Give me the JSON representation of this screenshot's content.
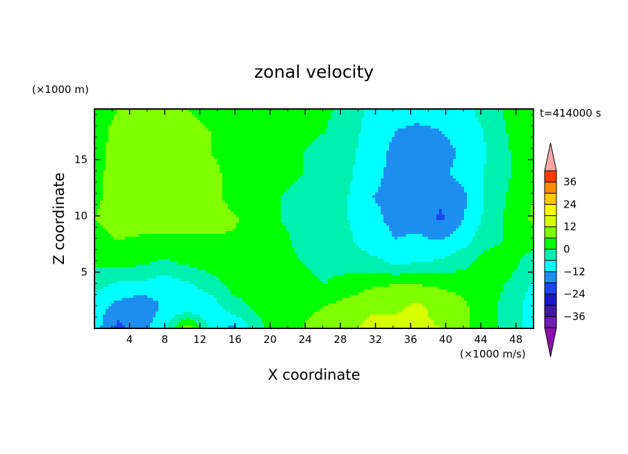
{
  "chart_data": {
    "type": "heatmap",
    "title": "zonal velocity",
    "xlabel": "X coordinate",
    "ylabel": "Z coordinate",
    "x_unit": "(×1000 m/s)",
    "y_unit": "(×1000 m)",
    "time_label": "t=414000 s",
    "xlim": [
      0,
      50
    ],
    "ylim": [
      0,
      19.5
    ],
    "x_ticks": [
      4,
      8,
      12,
      16,
      20,
      24,
      28,
      32,
      36,
      40,
      44,
      48
    ],
    "y_ticks": [
      5,
      10,
      15
    ],
    "colorbar": {
      "levels": [
        -42,
        -36,
        -30,
        -24,
        -18,
        -12,
        -6,
        0,
        6,
        12,
        18,
        24,
        30,
        36,
        42
      ],
      "tick_labels": [
        36,
        24,
        12,
        0,
        -12,
        -24,
        -36
      ],
      "colors": [
        "#6f1cb0",
        "#3e1aa3",
        "#1818c8",
        "#1a45ee",
        "#1d8ef0",
        "#00ffff",
        "#00f0b0",
        "#00ff00",
        "#80ff00",
        "#d6ff00",
        "#ffff00",
        "#ffc800",
        "#ff8c00",
        "#ff3c00",
        "#ff1a1a"
      ],
      "extend_low_color": "#8b12a8",
      "extend_high_color": "#f7a6a6"
    },
    "z_grid": [
      [
        2,
        6,
        10,
        8,
        6,
        5,
        5,
        5,
        4,
        2,
        1,
        -2,
        -8,
        -10,
        -10,
        -10,
        -8,
        -3,
        2,
        3
      ],
      [
        3,
        8,
        12,
        9,
        7,
        6,
        5,
        4,
        3,
        1,
        0,
        -3,
        -9,
        -12,
        -13,
        -12,
        -10,
        -5,
        1,
        3
      ],
      [
        3,
        9,
        11,
        10,
        8,
        6,
        5,
        3,
        2,
        0,
        -1,
        -4,
        -10,
        -13,
        -14,
        -14,
        -11,
        -6,
        0,
        2
      ],
      [
        4,
        9,
        10,
        11,
        9,
        7,
        5,
        2,
        1,
        0,
        -2,
        -5,
        -11,
        -13,
        -14,
        -13,
        -10,
        -5,
        0,
        3
      ],
      [
        5,
        8,
        9,
        10,
        10,
        8,
        4,
        1,
        0,
        -1,
        -3,
        -6,
        -12,
        -13,
        -15,
        -17,
        -13,
        -5,
        1,
        6
      ],
      [
        6,
        8,
        9,
        9,
        8,
        9,
        7,
        3,
        0,
        -1,
        -3,
        -6,
        -11,
        -13,
        -14,
        -19,
        -12,
        -4,
        2,
        7
      ],
      [
        4,
        6,
        5,
        5,
        5,
        5,
        5,
        3,
        1,
        -1,
        -2,
        -5,
        -10,
        -12,
        -11,
        -12,
        -8,
        -2,
        1,
        3
      ],
      [
        1,
        2,
        1,
        -1,
        1,
        3,
        4,
        3,
        1,
        0,
        -1,
        -2,
        -4,
        -7,
        -6,
        -5,
        -2,
        3,
        2,
        -3
      ],
      [
        -4,
        -7,
        -7,
        -10,
        -7,
        -3,
        2,
        2,
        2,
        1,
        0,
        2,
        5,
        6,
        6,
        5,
        4,
        3,
        -1,
        -7
      ],
      [
        -9,
        -14,
        -17,
        -11,
        -12,
        -10,
        -2,
        1,
        4,
        5,
        6,
        9,
        11,
        11,
        13,
        10,
        7,
        2,
        -3,
        -9
      ],
      [
        -9,
        -20,
        -14,
        -8,
        10,
        -7,
        -14,
        -2,
        3,
        6,
        8,
        11,
        14,
        14,
        13,
        12,
        7,
        2,
        -2,
        -9
      ]
    ]
  }
}
